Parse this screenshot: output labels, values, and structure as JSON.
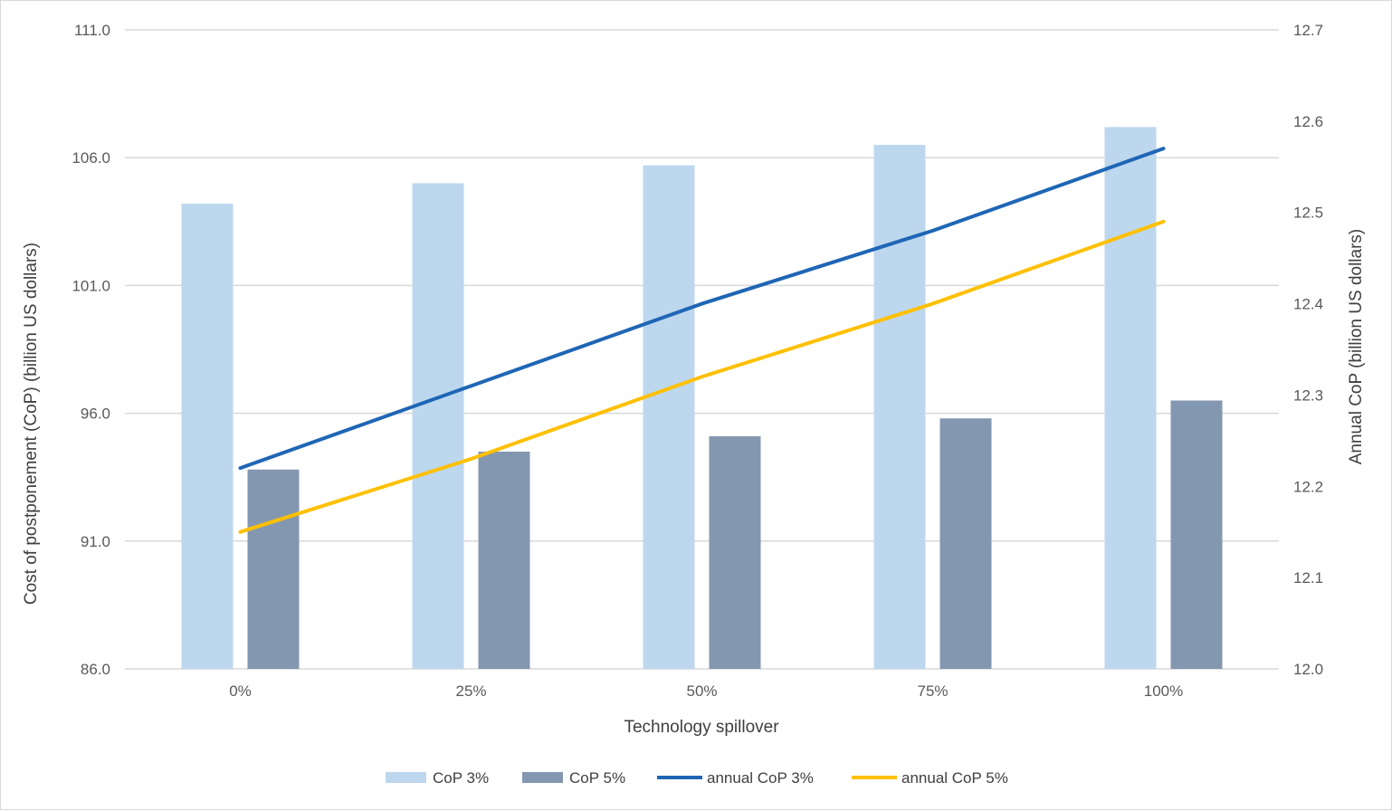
{
  "chart_data": {
    "type": "bar",
    "title": "",
    "xlabel": "Technology spillover",
    "ylabel": "Cost of postponement (CoP) (billion US dollars)",
    "y2label": "Annual CoP (billion US dollars)",
    "categories": [
      "0%",
      "25%",
      "50%",
      "75%",
      "100%"
    ],
    "ylim": [
      86.0,
      111.0
    ],
    "yticks": [
      "86.0",
      "91.0",
      "96.0",
      "101.0",
      "106.0",
      "111.0"
    ],
    "y2lim": [
      12.0,
      12.7
    ],
    "y2ticks": [
      "12.0",
      "12.1",
      "12.2",
      "12.3",
      "12.4",
      "12.5",
      "12.6",
      "12.7"
    ],
    "grid": true,
    "legend_position": "bottom",
    "series": [
      {
        "name": "CoP 3%",
        "type": "bar",
        "axis": "left",
        "color": "#bdd7ee",
        "values": [
          104.2,
          105.0,
          105.7,
          106.5,
          107.2
        ]
      },
      {
        "name": "CoP 5%",
        "type": "bar",
        "axis": "left",
        "color": "#8497b0",
        "values": [
          93.8,
          94.5,
          95.1,
          95.8,
          96.5
        ]
      },
      {
        "name": "annual CoP 3%",
        "type": "line",
        "axis": "right",
        "color": "#1f66b5",
        "values": [
          12.22,
          12.31,
          12.4,
          12.48,
          12.57
        ]
      },
      {
        "name": "annual CoP 5%",
        "type": "line",
        "axis": "right",
        "color": "#ffc000",
        "values": [
          12.15,
          12.23,
          12.32,
          12.4,
          12.49
        ]
      }
    ]
  }
}
